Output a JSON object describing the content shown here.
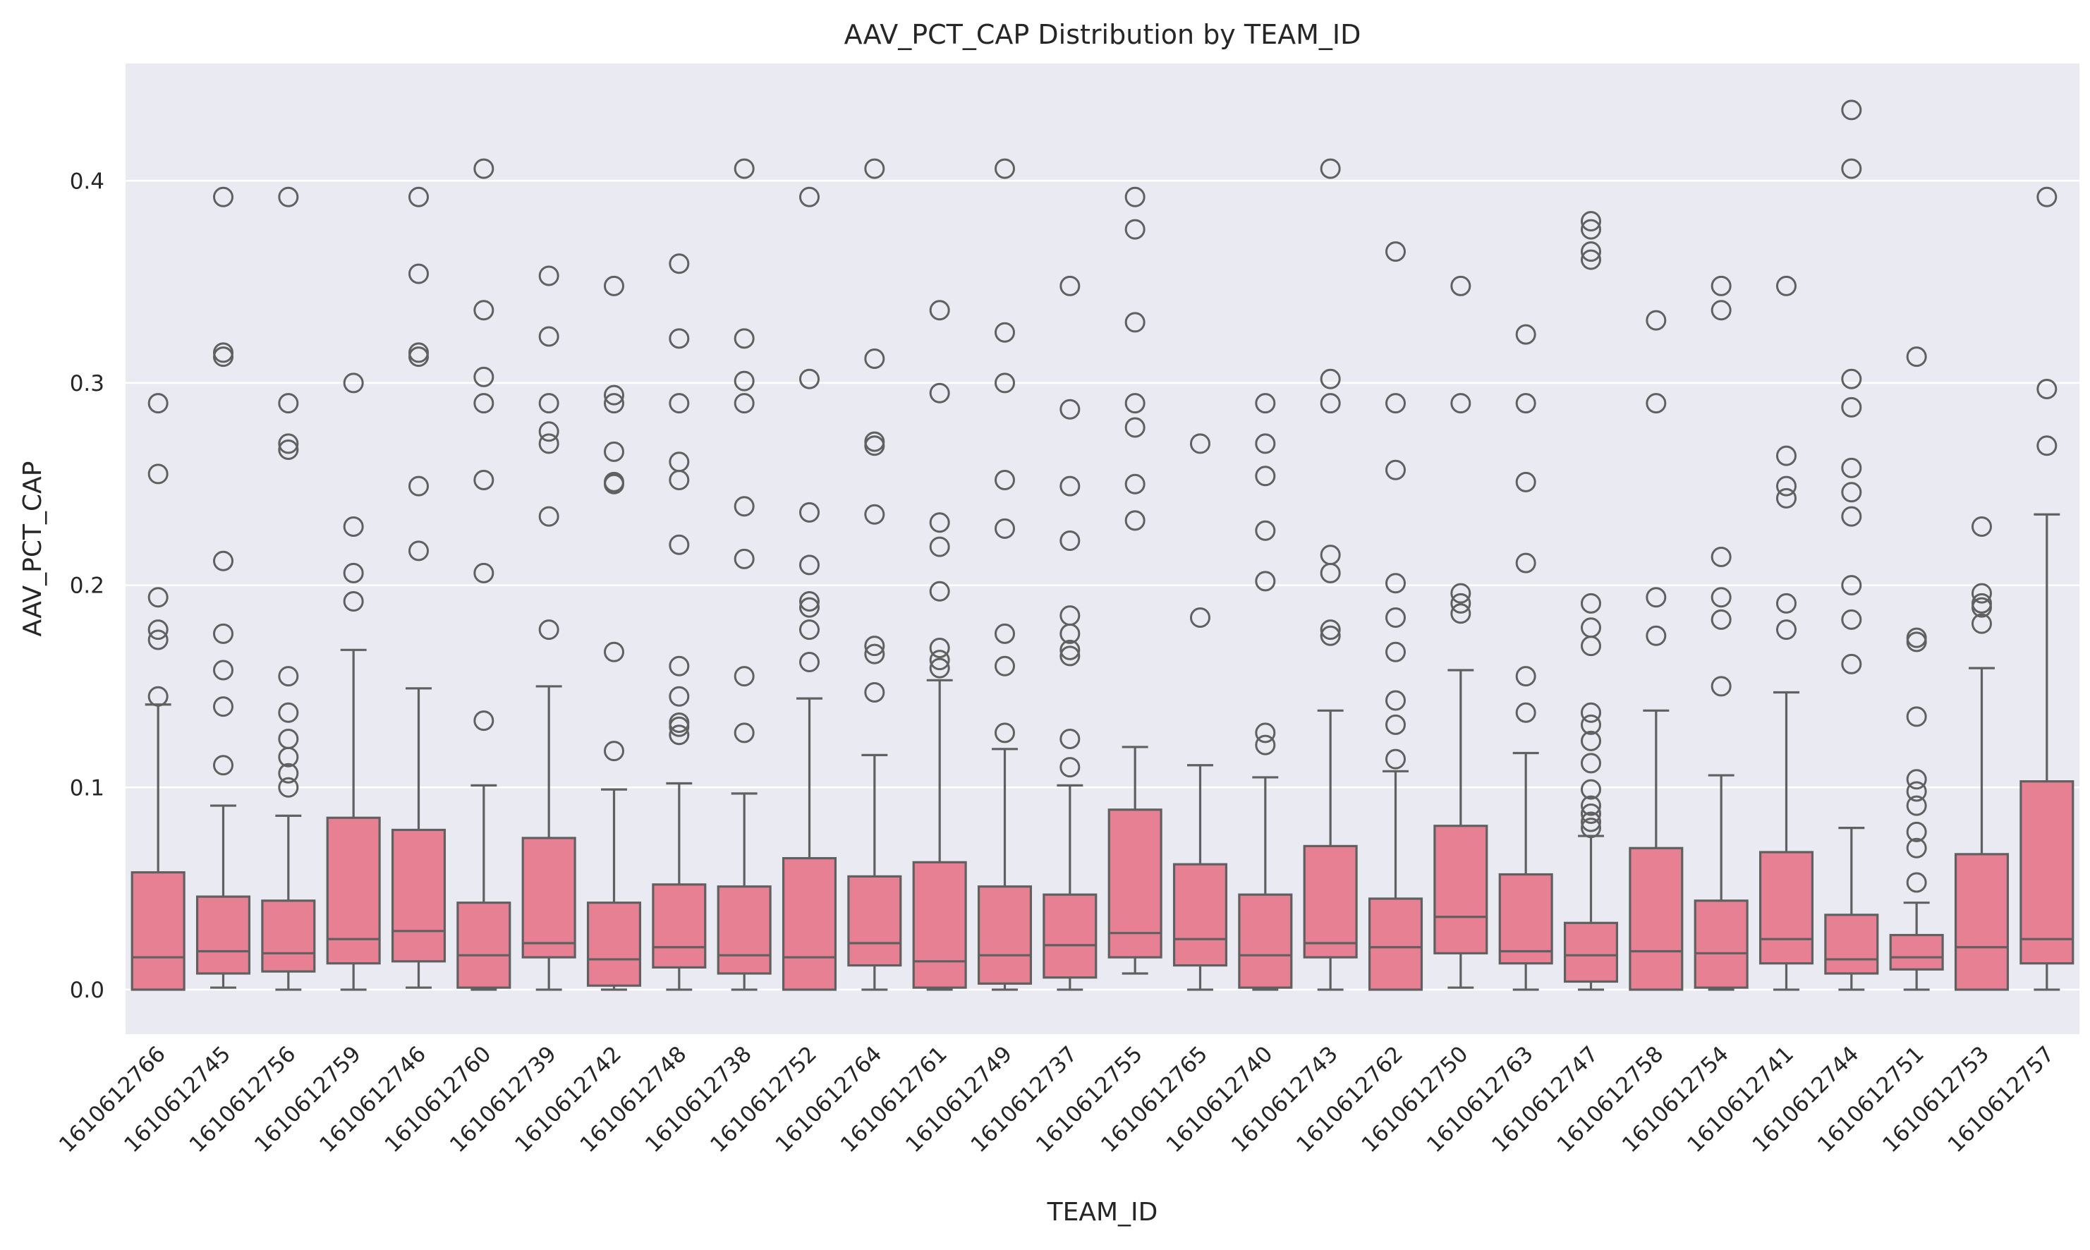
{
  "chart_data": {
    "type": "box",
    "title": "AAV_PCT_CAP Distribution by TEAM_ID",
    "xlabel": "TEAM_ID",
    "ylabel": "AAV_PCT_CAP",
    "ylim": [
      -0.022,
      0.458
    ],
    "yticks": [
      0.0,
      0.1,
      0.2,
      0.3,
      0.4
    ],
    "ytick_labels": [
      "0.0",
      "0.1",
      "0.2",
      "0.3",
      "0.4"
    ],
    "grid": true,
    "colors": {
      "box_fill": "#e88094",
      "line": "#606060",
      "background": "#eaeaf2",
      "grid": "#ffffff",
      "text": "#262626"
    },
    "boxes": [
      {
        "team": "1610612766",
        "lower_whisker": 0.0,
        "q1": 0.0,
        "median": 0.016,
        "q3": 0.058,
        "upper_whisker": 0.141,
        "outliers": [
          0.145,
          0.173,
          0.178,
          0.194,
          0.255,
          0.29
        ]
      },
      {
        "team": "1610612745",
        "lower_whisker": 0.001,
        "q1": 0.008,
        "median": 0.019,
        "q3": 0.046,
        "upper_whisker": 0.091,
        "outliers": [
          0.111,
          0.14,
          0.158,
          0.176,
          0.212,
          0.313,
          0.315,
          0.392
        ]
      },
      {
        "team": "1610612756",
        "lower_whisker": 0.0,
        "q1": 0.009,
        "median": 0.018,
        "q3": 0.044,
        "upper_whisker": 0.086,
        "outliers": [
          0.1,
          0.107,
          0.115,
          0.124,
          0.137,
          0.155,
          0.267,
          0.27,
          0.29,
          0.392
        ]
      },
      {
        "team": "1610612759",
        "lower_whisker": 0.0,
        "q1": 0.013,
        "median": 0.025,
        "q3": 0.085,
        "upper_whisker": 0.168,
        "outliers": [
          0.192,
          0.206,
          0.229,
          0.3
        ]
      },
      {
        "team": "1610612746",
        "lower_whisker": 0.001,
        "q1": 0.014,
        "median": 0.029,
        "q3": 0.079,
        "upper_whisker": 0.149,
        "outliers": [
          0.217,
          0.249,
          0.313,
          0.315,
          0.354,
          0.392
        ]
      },
      {
        "team": "1610612760",
        "lower_whisker": 0.0,
        "q1": 0.001,
        "median": 0.017,
        "q3": 0.043,
        "upper_whisker": 0.101,
        "outliers": [
          0.133,
          0.206,
          0.252,
          0.29,
          0.303,
          0.336,
          0.406
        ]
      },
      {
        "team": "1610612739",
        "lower_whisker": 0.0,
        "q1": 0.016,
        "median": 0.023,
        "q3": 0.075,
        "upper_whisker": 0.15,
        "outliers": [
          0.178,
          0.234,
          0.27,
          0.276,
          0.29,
          0.323,
          0.353
        ]
      },
      {
        "team": "1610612742",
        "lower_whisker": 0.0,
        "q1": 0.002,
        "median": 0.015,
        "q3": 0.043,
        "upper_whisker": 0.099,
        "outliers": [
          0.118,
          0.167,
          0.25,
          0.251,
          0.266,
          0.29,
          0.294,
          0.348
        ]
      },
      {
        "team": "1610612748",
        "lower_whisker": 0.0,
        "q1": 0.011,
        "median": 0.021,
        "q3": 0.052,
        "upper_whisker": 0.102,
        "outliers": [
          0.126,
          0.13,
          0.132,
          0.145,
          0.16,
          0.22,
          0.252,
          0.261,
          0.29,
          0.322,
          0.359
        ]
      },
      {
        "team": "1610612738",
        "lower_whisker": 0.0,
        "q1": 0.008,
        "median": 0.017,
        "q3": 0.051,
        "upper_whisker": 0.097,
        "outliers": [
          0.127,
          0.155,
          0.213,
          0.239,
          0.29,
          0.301,
          0.322,
          0.406
        ]
      },
      {
        "team": "1610612752",
        "lower_whisker": 0.0,
        "q1": 0.0,
        "median": 0.016,
        "q3": 0.065,
        "upper_whisker": 0.144,
        "outliers": [
          0.162,
          0.178,
          0.189,
          0.192,
          0.21,
          0.236,
          0.302,
          0.392
        ]
      },
      {
        "team": "1610612764",
        "lower_whisker": 0.0,
        "q1": 0.012,
        "median": 0.023,
        "q3": 0.056,
        "upper_whisker": 0.116,
        "outliers": [
          0.147,
          0.166,
          0.17,
          0.235,
          0.269,
          0.271,
          0.312,
          0.406
        ]
      },
      {
        "team": "1610612761",
        "lower_whisker": 0.0,
        "q1": 0.001,
        "median": 0.014,
        "q3": 0.063,
        "upper_whisker": 0.153,
        "outliers": [
          0.159,
          0.163,
          0.169,
          0.197,
          0.219,
          0.231,
          0.295,
          0.336
        ]
      },
      {
        "team": "1610612749",
        "lower_whisker": 0.0,
        "q1": 0.003,
        "median": 0.017,
        "q3": 0.051,
        "upper_whisker": 0.119,
        "outliers": [
          0.127,
          0.16,
          0.176,
          0.228,
          0.252,
          0.3,
          0.325,
          0.406
        ]
      },
      {
        "team": "1610612737",
        "lower_whisker": 0.0,
        "q1": 0.006,
        "median": 0.022,
        "q3": 0.047,
        "upper_whisker": 0.101,
        "outliers": [
          0.11,
          0.124,
          0.165,
          0.168,
          0.176,
          0.185,
          0.222,
          0.249,
          0.287,
          0.348
        ]
      },
      {
        "team": "1610612755",
        "lower_whisker": 0.008,
        "q1": 0.016,
        "median": 0.028,
        "q3": 0.089,
        "upper_whisker": 0.12,
        "outliers": [
          0.232,
          0.25,
          0.278,
          0.29,
          0.33,
          0.376,
          0.392
        ]
      },
      {
        "team": "1610612765",
        "lower_whisker": 0.0,
        "q1": 0.012,
        "median": 0.025,
        "q3": 0.062,
        "upper_whisker": 0.111,
        "outliers": [
          0.184,
          0.27
        ]
      },
      {
        "team": "1610612740",
        "lower_whisker": 0.0,
        "q1": 0.001,
        "median": 0.017,
        "q3": 0.047,
        "upper_whisker": 0.105,
        "outliers": [
          0.121,
          0.127,
          0.202,
          0.227,
          0.254,
          0.27,
          0.29
        ]
      },
      {
        "team": "1610612743",
        "lower_whisker": 0.0,
        "q1": 0.016,
        "median": 0.023,
        "q3": 0.071,
        "upper_whisker": 0.138,
        "outliers": [
          0.175,
          0.178,
          0.206,
          0.215,
          0.29,
          0.302,
          0.406
        ]
      },
      {
        "team": "1610612762",
        "lower_whisker": 0.0,
        "q1": 0.0,
        "median": 0.021,
        "q3": 0.045,
        "upper_whisker": 0.108,
        "outliers": [
          0.114,
          0.131,
          0.143,
          0.167,
          0.184,
          0.201,
          0.257,
          0.29,
          0.365
        ]
      },
      {
        "team": "1610612750",
        "lower_whisker": 0.001,
        "q1": 0.018,
        "median": 0.036,
        "q3": 0.081,
        "upper_whisker": 0.158,
        "outliers": [
          0.186,
          0.191,
          0.196,
          0.29,
          0.348
        ]
      },
      {
        "team": "1610612763",
        "lower_whisker": 0.0,
        "q1": 0.013,
        "median": 0.019,
        "q3": 0.057,
        "upper_whisker": 0.117,
        "outliers": [
          0.137,
          0.155,
          0.211,
          0.251,
          0.29,
          0.324
        ]
      },
      {
        "team": "1610612747",
        "lower_whisker": 0.0,
        "q1": 0.004,
        "median": 0.017,
        "q3": 0.033,
        "upper_whisker": 0.076,
        "outliers": [
          0.08,
          0.083,
          0.087,
          0.091,
          0.099,
          0.112,
          0.123,
          0.131,
          0.137,
          0.17,
          0.179,
          0.191,
          0.361,
          0.365,
          0.376,
          0.38
        ]
      },
      {
        "team": "1610612758",
        "lower_whisker": 0.0,
        "q1": 0.0,
        "median": 0.019,
        "q3": 0.07,
        "upper_whisker": 0.138,
        "outliers": [
          0.175,
          0.194,
          0.29,
          0.331
        ]
      },
      {
        "team": "1610612754",
        "lower_whisker": 0.0,
        "q1": 0.001,
        "median": 0.018,
        "q3": 0.044,
        "upper_whisker": 0.106,
        "outliers": [
          0.15,
          0.183,
          0.194,
          0.214,
          0.336,
          0.348
        ]
      },
      {
        "team": "1610612741",
        "lower_whisker": 0.0,
        "q1": 0.013,
        "median": 0.025,
        "q3": 0.068,
        "upper_whisker": 0.147,
        "outliers": [
          0.178,
          0.191,
          0.243,
          0.249,
          0.264,
          0.348
        ]
      },
      {
        "team": "1610612744",
        "lower_whisker": 0.0,
        "q1": 0.008,
        "median": 0.015,
        "q3": 0.037,
        "upper_whisker": 0.08,
        "outliers": [
          0.161,
          0.183,
          0.2,
          0.234,
          0.246,
          0.258,
          0.288,
          0.302,
          0.406,
          0.435
        ]
      },
      {
        "team": "1610612751",
        "lower_whisker": 0.0,
        "q1": 0.01,
        "median": 0.016,
        "q3": 0.027,
        "upper_whisker": 0.043,
        "outliers": [
          0.053,
          0.07,
          0.078,
          0.091,
          0.098,
          0.104,
          0.135,
          0.172,
          0.174,
          0.313
        ]
      },
      {
        "team": "1610612753",
        "lower_whisker": 0.0,
        "q1": 0.0,
        "median": 0.021,
        "q3": 0.067,
        "upper_whisker": 0.159,
        "outliers": [
          0.181,
          0.189,
          0.191,
          0.196,
          0.229
        ]
      },
      {
        "team": "1610612757",
        "lower_whisker": 0.0,
        "q1": 0.013,
        "median": 0.025,
        "q3": 0.103,
        "upper_whisker": 0.235,
        "outliers": [
          0.269,
          0.297,
          0.392
        ]
      }
    ]
  }
}
